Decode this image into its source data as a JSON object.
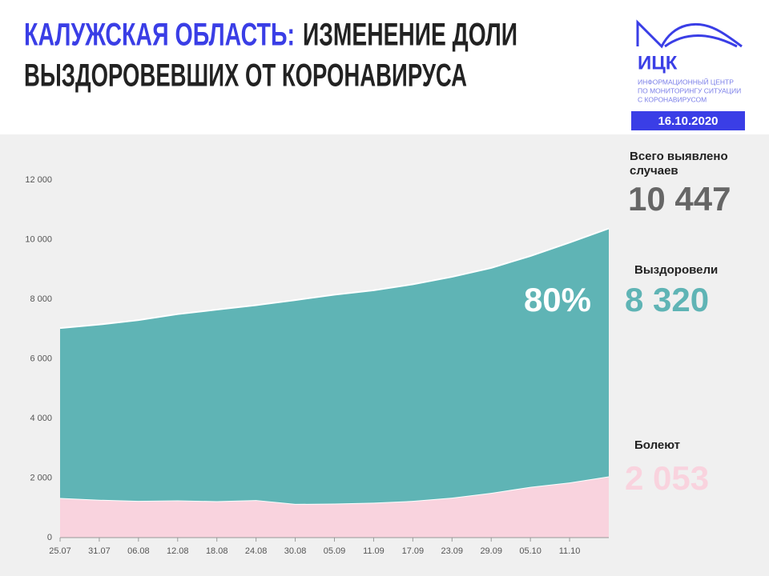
{
  "header": {
    "title_region": "КАЛУЖСКАЯ ОБЛАСТЬ:",
    "title_line1": "ИЗМЕНЕНИЕ ДОЛИ",
    "title_line2": "ВЫЗДОРОВЕВШИХ ОТ КОРОНАВИРУСА",
    "logo": "ИЦК",
    "logo_lines": [
      "ИНФОРМАЦИОННЫЙ ЦЕНТР",
      "ПО МОНИТОРИНГУ СИТУАЦИИ",
      "С КОРОНАВИРУСОМ"
    ],
    "date": "16.10.2020"
  },
  "chart_data": {
    "type": "stacked-area",
    "categories": [
      "25.07",
      "31.07",
      "06.08",
      "12.08",
      "18.08",
      "24.08",
      "30.08",
      "05.09",
      "11.09",
      "17.09",
      "23.09",
      "29.09",
      "05.10",
      "11.10",
      null
    ],
    "series": [
      {
        "name": "Болеют",
        "color": "#f9d3de",
        "values": [
          1330,
          1270,
          1230,
          1250,
          1220,
          1260,
          1130,
          1140,
          1170,
          1230,
          1340,
          1500,
          1700,
          1850,
          2053
        ],
        "value_labels": [
          null,
          null,
          null,
          null,
          null,
          null,
          null,
          null,
          null,
          null,
          null,
          null,
          null,
          null,
          "2 053"
        ],
        "label_color": "#f9d3de"
      },
      {
        "name": "Выздоровели",
        "color": "#5fb4b5",
        "values": [
          5700,
          5880,
          6070,
          6250,
          6430,
          6540,
          6840,
          7010,
          7130,
          7270,
          7410,
          7550,
          7750,
          8050,
          8320
        ],
        "value_labels": [
          null,
          null,
          null,
          null,
          null,
          null,
          null,
          null,
          null,
          null,
          null,
          null,
          null,
          null,
          "8 320"
        ],
        "label_color": "#5fb4b5"
      }
    ],
    "total": {
      "label": "Всего выявлено случаев",
      "value": 10447,
      "value_label": "10 447"
    },
    "share": {
      "value": 80,
      "label": "80%"
    },
    "ylim": [
      0,
      12000
    ],
    "yticks": [
      0,
      {
        "value": 2000,
        "label": "2 000"
      },
      {
        "value": 4000,
        "label": "4 000"
      },
      {
        "value": 6000,
        "label": "6 000"
      },
      {
        "value": 8000,
        "label": "8 000"
      },
      {
        "value": 10000,
        "label": "10 000"
      },
      {
        "value": 12000,
        "label": "12 000"
      }
    ],
    "grid": false
  }
}
